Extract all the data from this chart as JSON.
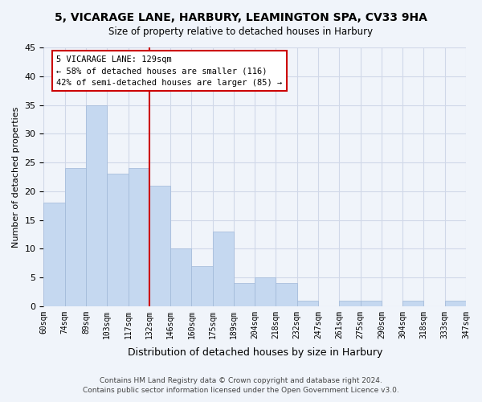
{
  "title1": "5, VICARAGE LANE, HARBURY, LEAMINGTON SPA, CV33 9HA",
  "title2": "Size of property relative to detached houses in Harbury",
  "xlabel": "Distribution of detached houses by size in Harbury",
  "ylabel": "Number of detached properties",
  "bar_color": "#c5d8f0",
  "bar_edge_color": "#a0b8d8",
  "bin_labels": [
    "60sqm",
    "74sqm",
    "89sqm",
    "103sqm",
    "117sqm",
    "132sqm",
    "146sqm",
    "160sqm",
    "175sqm",
    "189sqm",
    "204sqm",
    "218sqm",
    "232sqm",
    "247sqm",
    "261sqm",
    "275sqm",
    "290sqm",
    "304sqm",
    "318sqm",
    "333sqm",
    "347sqm"
  ],
  "bar_heights": [
    18,
    24,
    35,
    23,
    24,
    21,
    10,
    7,
    13,
    4,
    5,
    4,
    1,
    0,
    1,
    1,
    0,
    1,
    0,
    1
  ],
  "vline_x": 5,
  "vline_color": "#cc0000",
  "ylim": [
    0,
    45
  ],
  "annotation_title": "5 VICARAGE LANE: 129sqm",
  "annotation_line1": "← 58% of detached houses are smaller (116)",
  "annotation_line2": "42% of semi-detached houses are larger (85) →",
  "footnote1": "Contains HM Land Registry data © Crown copyright and database right 2024.",
  "footnote2": "Contains public sector information licensed under the Open Government Licence v3.0.",
  "grid_color": "#d0d8e8",
  "background_color": "#f0f4fa"
}
